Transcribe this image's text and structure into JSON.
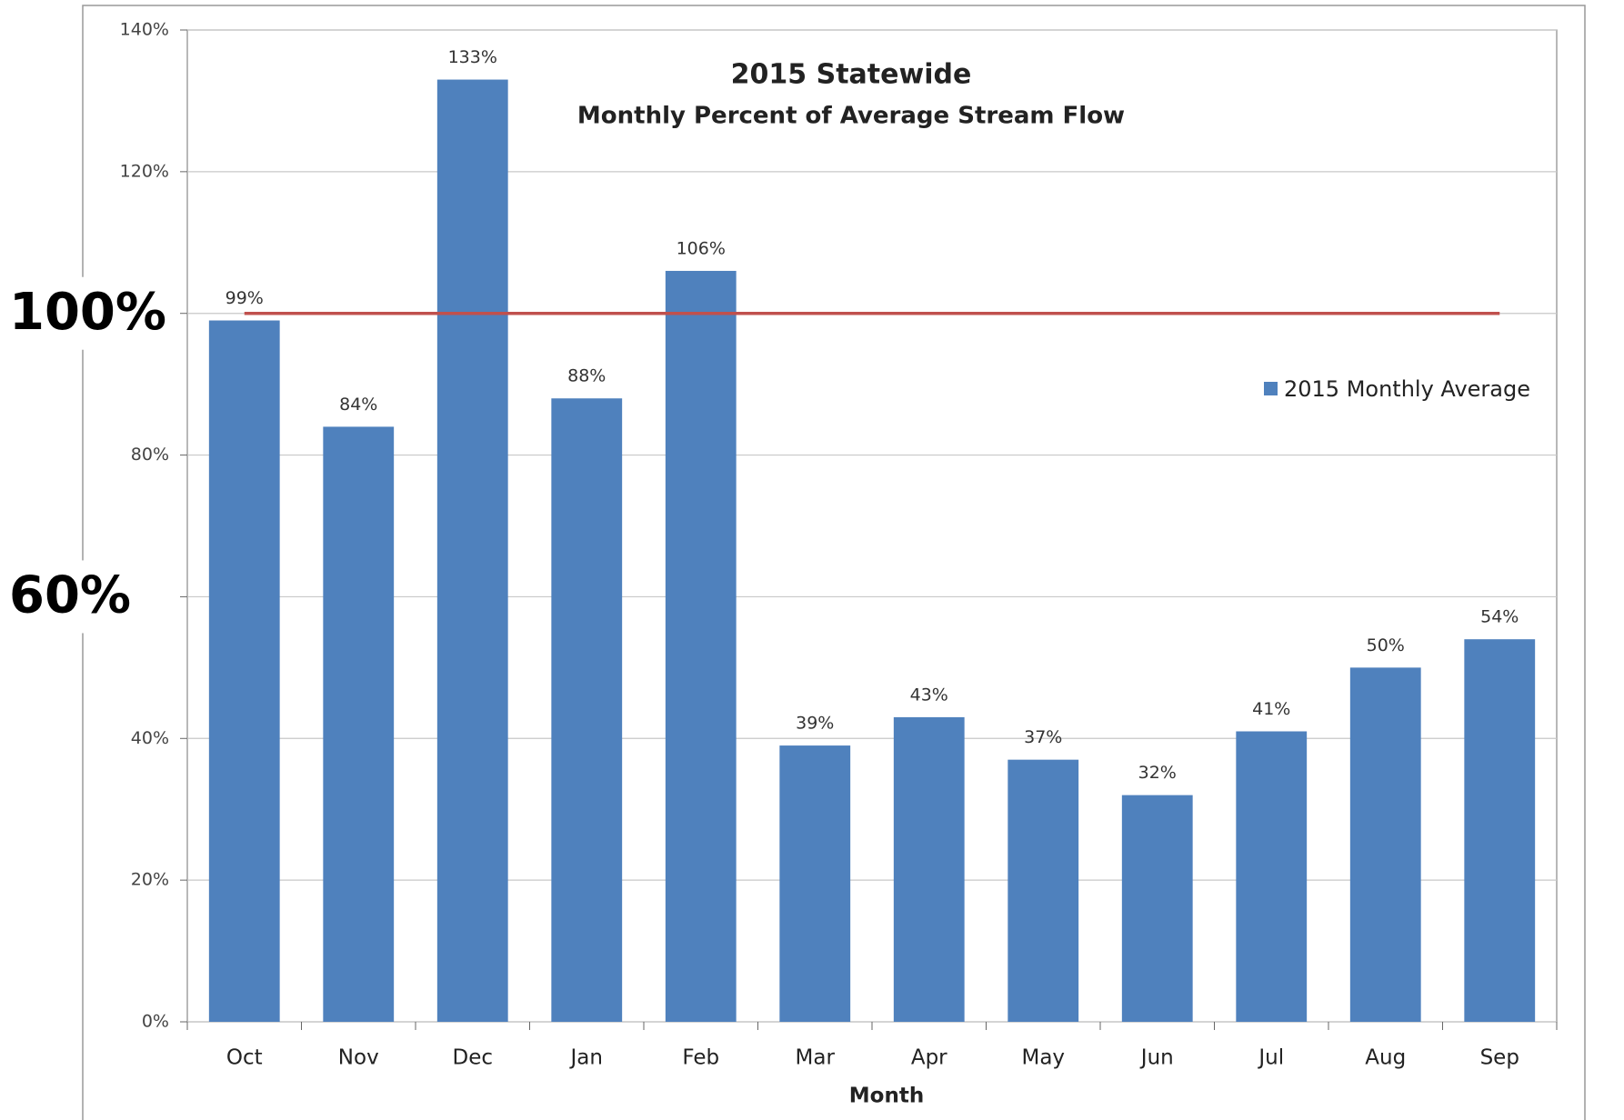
{
  "chart_data": {
    "type": "bar",
    "title": "2015 Statewide",
    "subtitle": "Monthly Percent of Average Stream Flow",
    "x_label": "Month",
    "categories": [
      "Oct",
      "Nov",
      "Dec",
      "Jan",
      "Feb",
      "Mar",
      "Apr",
      "May",
      "Jun",
      "Jul",
      "Aug",
      "Sep"
    ],
    "series": [
      {
        "name": "2015 Monthly Average",
        "color": "#4f81bd",
        "values": [
          99,
          84,
          133,
          88,
          106,
          39,
          43,
          37,
          32,
          41,
          50,
          54
        ],
        "value_labels": [
          "99%",
          "84%",
          "133%",
          "88%",
          "106%",
          "39%",
          "43%",
          "37%",
          "32%",
          "41%",
          "50%",
          "54%"
        ]
      }
    ],
    "ylim": [
      0,
      140
    ],
    "yticks": [
      {
        "value": 0,
        "label": "0%"
      },
      {
        "value": 20,
        "label": "20%"
      },
      {
        "value": 40,
        "label": "40%"
      },
      {
        "value": 80,
        "label": "80%"
      },
      {
        "value": 120,
        "label": "120%"
      },
      {
        "value": 140,
        "label": "140%"
      }
    ],
    "annotations": [
      {
        "text": "100%",
        "value": 100
      },
      {
        "text": "60%",
        "value": 60
      }
    ],
    "reference_line": {
      "value": 100,
      "color": "#c0504d"
    },
    "grid": true,
    "legend": "right"
  }
}
